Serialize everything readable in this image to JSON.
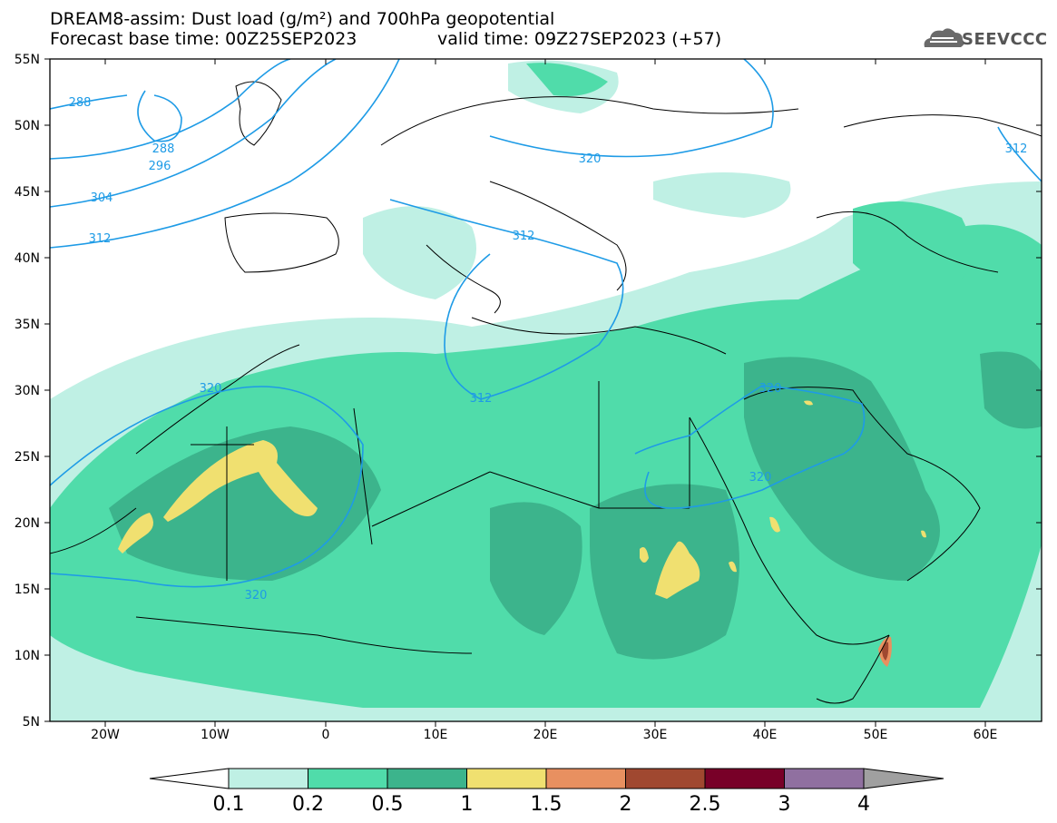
{
  "header": {
    "line1": "DREAM8-assim: Dust load (g/m²) and 700hPa geopotential",
    "line2": "Forecast base time: 00Z25SEP2023",
    "valid": "valid time: 09Z27SEP2023 (+57)",
    "logo_text": "SEEVCCC"
  },
  "axes": {
    "lat_labels": [
      "55N",
      "50N",
      "45N",
      "40N",
      "35N",
      "30N",
      "25N",
      "20N",
      "15N",
      "10N",
      "5N"
    ],
    "lon_labels": [
      "20W",
      "10W",
      "0",
      "10E",
      "20E",
      "30E",
      "40E",
      "50E",
      "60E"
    ]
  },
  "contours": {
    "labels": [
      "288",
      "288",
      "296",
      "304",
      "312",
      "312",
      "312",
      "320",
      "320",
      "320",
      "320",
      "312"
    ],
    "color": "#1e9be6"
  },
  "colorbar": {
    "ticks": [
      "0.1",
      "0.2",
      "0.5",
      "1",
      "1.5",
      "2",
      "2.5",
      "3",
      "4"
    ],
    "colors": [
      "#bff0e4",
      "#50dcaa",
      "#3cb48c",
      "#f0e070",
      "#e89060",
      "#a04830",
      "#780028",
      "#9070a0",
      "#a0a0a0"
    ]
  }
}
